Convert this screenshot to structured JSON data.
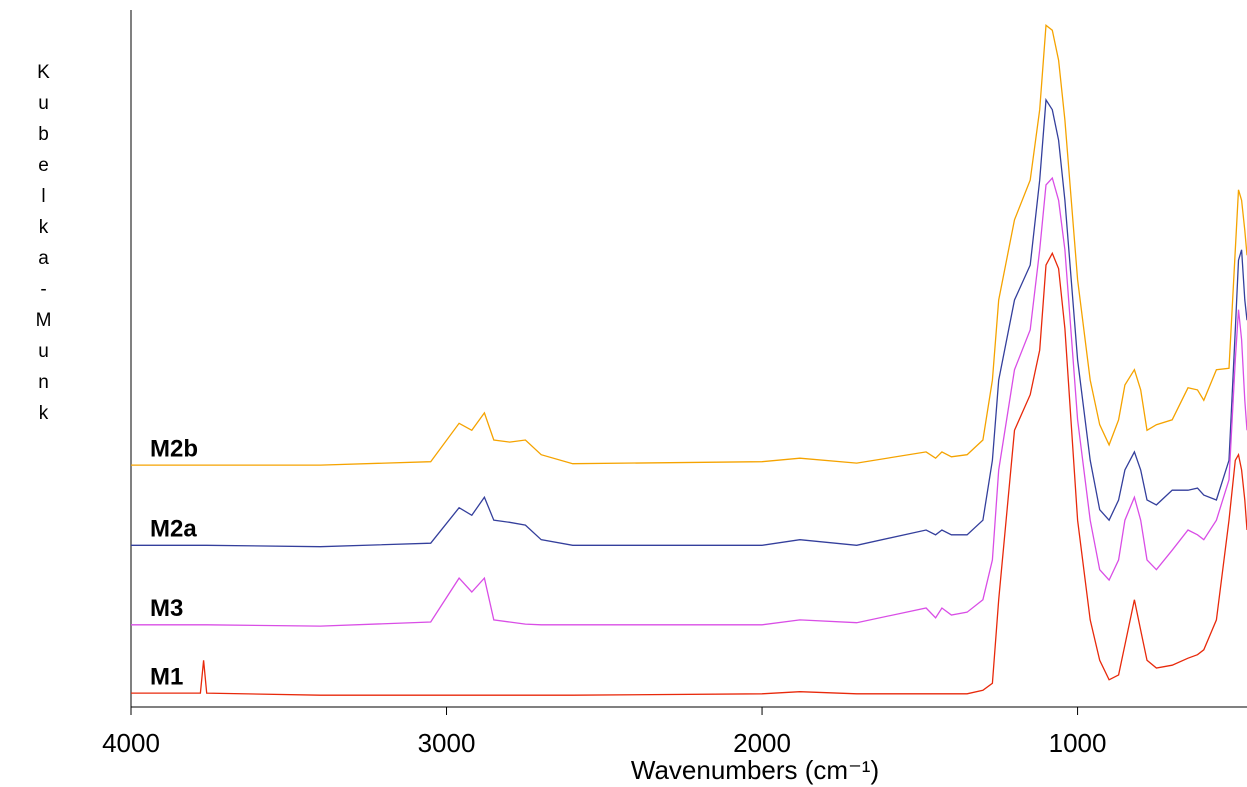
{
  "chart_data": {
    "type": "line",
    "x_label": "Wavenumbers (cm⁻¹)",
    "y_label": "Kubelka-Munk",
    "xlim": [
      4000,
      463
    ],
    "xticks": [
      4000,
      3000,
      2000,
      1000
    ],
    "ylim": [
      0,
      100
    ],
    "x": [
      4000,
      3780,
      3770,
      3760,
      3400,
      3050,
      2960,
      2920,
      2880,
      2850,
      2800,
      2750,
      2700,
      2600,
      2000,
      1880,
      1700,
      1480,
      1450,
      1430,
      1400,
      1350,
      1300,
      1270,
      1250,
      1200,
      1150,
      1120,
      1100,
      1080,
      1060,
      1040,
      1000,
      960,
      930,
      900,
      870,
      850,
      820,
      800,
      780,
      750,
      700,
      650,
      620,
      600,
      560,
      520,
      500,
      490,
      480,
      470,
      463
    ],
    "series": [
      {
        "name": "M2b",
        "color": "#f5a300",
        "values": [
          34.7,
          34.7,
          34.7,
          34.7,
          34.7,
          35.2,
          40.7,
          39.7,
          42.2,
          38.3,
          38.0,
          38.3,
          36.2,
          34.9,
          35.2,
          35.7,
          35.0,
          36.6,
          35.7,
          36.6,
          35.9,
          36.2,
          38.3,
          46.9,
          58.4,
          69.9,
          75.6,
          85.7,
          97.8,
          97.1,
          92.8,
          84.2,
          61.3,
          46.9,
          40.5,
          37.6,
          41.2,
          46.2,
          48.4,
          45.5,
          39.7,
          40.5,
          41.2,
          45.8,
          45.5,
          44.0,
          48.4,
          48.6,
          65.6,
          74.2,
          72.7,
          68.4,
          64.8
        ]
      },
      {
        "name": "M2a",
        "color": "#343f9c",
        "values": [
          23.2,
          23.2,
          23.2,
          23.2,
          23.0,
          23.5,
          28.6,
          27.5,
          30.1,
          26.8,
          26.5,
          26.1,
          24.0,
          23.2,
          23.2,
          24.0,
          23.2,
          25.4,
          24.7,
          25.4,
          24.7,
          24.7,
          26.8,
          35.4,
          46.9,
          58.4,
          63.4,
          75.6,
          87.1,
          85.7,
          81.3,
          72.7,
          49.8,
          35.4,
          28.3,
          26.8,
          29.7,
          34.0,
          36.6,
          34.0,
          29.7,
          29.0,
          31.1,
          31.1,
          31.4,
          30.4,
          29.7,
          35.4,
          54.1,
          64.1,
          65.6,
          58.4,
          55.5
        ]
      },
      {
        "name": "M3",
        "color": "#d94ee6",
        "values": [
          11.8,
          11.8,
          11.8,
          11.8,
          11.6,
          12.2,
          18.5,
          16.5,
          18.5,
          12.5,
          12.2,
          11.9,
          11.8,
          11.8,
          11.8,
          12.5,
          12.1,
          14.2,
          12.8,
          14.2,
          13.2,
          13.6,
          15.4,
          21.1,
          34.0,
          48.4,
          54.1,
          65.6,
          74.9,
          75.9,
          72.7,
          65.6,
          41.2,
          26.8,
          19.7,
          18.2,
          21.1,
          26.8,
          30.1,
          26.8,
          21.1,
          19.7,
          22.5,
          25.4,
          24.7,
          24.0,
          26.8,
          32.6,
          49.8,
          57.0,
          52.7,
          44.0,
          39.7
        ]
      },
      {
        "name": "M1",
        "color": "#e8290b",
        "values": [
          2.0,
          2.0,
          6.7,
          2.0,
          1.7,
          1.7,
          1.7,
          1.7,
          1.7,
          1.7,
          1.7,
          1.7,
          1.7,
          1.7,
          1.9,
          2.2,
          1.9,
          1.9,
          1.9,
          1.9,
          1.9,
          1.9,
          2.4,
          3.4,
          15.4,
          39.7,
          44.8,
          51.2,
          63.4,
          65.1,
          62.9,
          54.3,
          26.8,
          12.5,
          6.7,
          3.9,
          4.6,
          8.9,
          15.4,
          11.0,
          6.7,
          5.6,
          6.0,
          7.0,
          7.5,
          8.2,
          12.5,
          26.8,
          35.4,
          36.2,
          34.0,
          29.7,
          25.4
        ]
      }
    ]
  }
}
